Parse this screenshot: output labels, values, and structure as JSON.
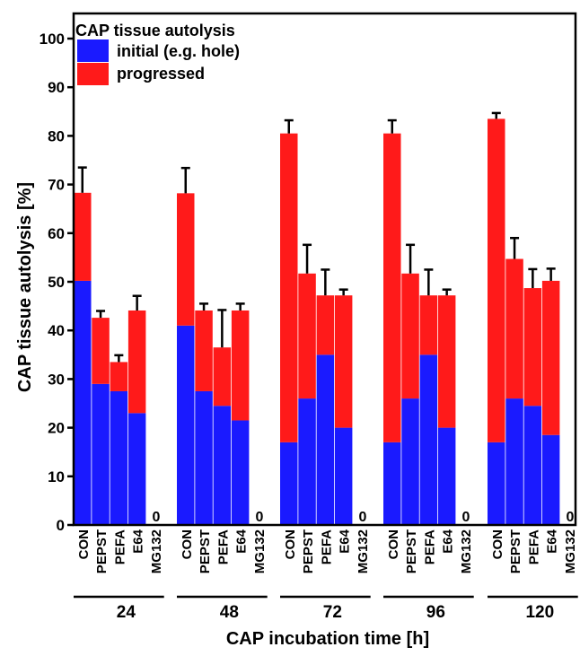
{
  "chart_data": {
    "type": "bar",
    "stacked": true,
    "ylabel": "CAP tissue autolysis [%]",
    "xlabel": "CAP incubation time [h]",
    "ylim": [
      0,
      100
    ],
    "yticks": [
      0,
      10,
      20,
      30,
      40,
      50,
      60,
      70,
      80,
      90,
      100
    ],
    "legend": {
      "title": "CAP tissue autolysis",
      "placement": "top-left",
      "entries": [
        {
          "name": "initial (e.g. hole)",
          "color": "#1a1aff"
        },
        {
          "name": "progressed",
          "color": "#ff1a1a"
        }
      ]
    },
    "categories": [
      "CON",
      "PEPST",
      "PEFA",
      "E64",
      "MG132"
    ],
    "groups": [
      "24",
      "48",
      "72",
      "96",
      "120"
    ],
    "zero_label": "0",
    "series": [
      {
        "name": "initial (e.g. hole)",
        "color": "#1a1aff",
        "values": [
          [
            50.2,
            29,
            27.5,
            23,
            0
          ],
          [
            41,
            27.5,
            24.5,
            21.5,
            0
          ],
          [
            17,
            26,
            35,
            20,
            0
          ],
          [
            17,
            26,
            35,
            20,
            0
          ],
          [
            17,
            26,
            24.5,
            18.5,
            0
          ]
        ]
      },
      {
        "name": "progressed",
        "color": "#ff1a1a",
        "values": [
          [
            18.1,
            13.6,
            6,
            21.1,
            0
          ],
          [
            27.2,
            16.6,
            12,
            22.6,
            0
          ],
          [
            63.5,
            25.7,
            12.2,
            27.2,
            0
          ],
          [
            63.5,
            25.7,
            12.2,
            27.2,
            0
          ],
          [
            66.5,
            28.7,
            24.2,
            31.7,
            0
          ]
        ]
      }
    ],
    "error_upper": [
      [
        5.2,
        1.4,
        1.4,
        3.0,
        0
      ],
      [
        5.2,
        1.4,
        7.7,
        1.4,
        0
      ],
      [
        2.7,
        5.9,
        5.3,
        1.2,
        0
      ],
      [
        2.7,
        5.9,
        5.3,
        1.2,
        0
      ],
      [
        1.2,
        4.3,
        3.9,
        2.5,
        0
      ]
    ]
  }
}
